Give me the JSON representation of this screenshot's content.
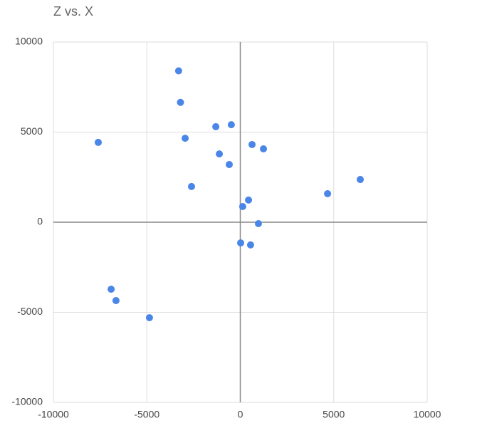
{
  "chart_data": {
    "type": "scatter",
    "title": "Z vs. X",
    "x": [
      -3300,
      -3200,
      -7600,
      -2950,
      -1310,
      -480,
      -1120,
      -590,
      630,
      1240,
      -2610,
      4670,
      6420,
      440,
      130,
      970,
      20,
      550,
      -6910,
      -6650,
      -4860
    ],
    "series": [
      {
        "name": "Z",
        "color": "#4a86e8",
        "values": [
          8400,
          6650,
          4430,
          4660,
          5300,
          5410,
          3790,
          3200,
          4310,
          4070,
          1980,
          1580,
          2370,
          1230,
          870,
          -80,
          -1150,
          -1260,
          -3720,
          -4350,
          -5300
        ]
      }
    ],
    "xlim": [
      -10000,
      10000
    ],
    "xticks": [
      -10000,
      -5000,
      0,
      5000,
      10000
    ],
    "ylim": [
      -10000,
      10000
    ],
    "yticks": [
      -10000,
      -5000,
      0,
      5000,
      10000
    ],
    "grid": true
  }
}
